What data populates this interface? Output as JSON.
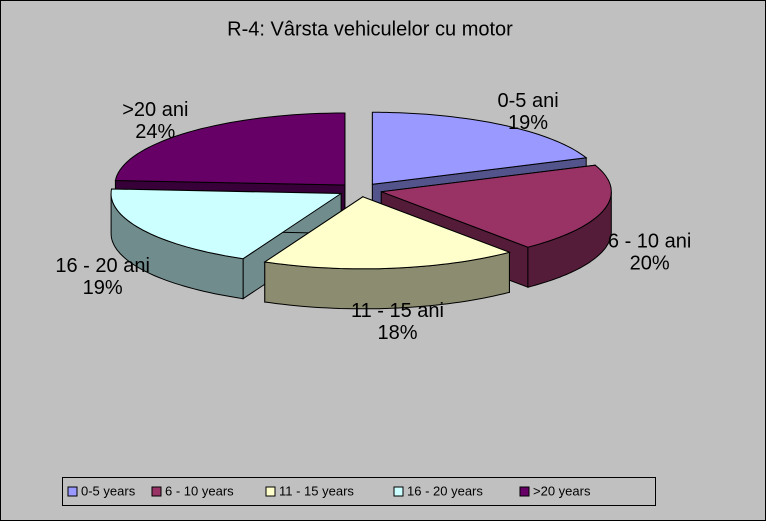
{
  "chart_data": {
    "type": "pie3d",
    "title": "R-4: Vârsta vehiculelor cu motor",
    "categories": [
      "0-5 years",
      "6 - 10 years",
      "11 - 15 years",
      "16 - 20 years",
      ">20 years"
    ],
    "labels": [
      "0-5 ani",
      "6 - 10 ani",
      "11 - 15 ani",
      "16 - 20 ani",
      ">20  ani"
    ],
    "values": [
      19,
      20,
      18,
      19,
      24
    ],
    "value_labels": [
      "19%",
      "20%",
      "18%",
      "19%",
      "24%"
    ],
    "colors": [
      "#9999ff",
      "#993366",
      "#ffffcc",
      "#ccffff",
      "#660066"
    ],
    "legend": "bottom"
  }
}
